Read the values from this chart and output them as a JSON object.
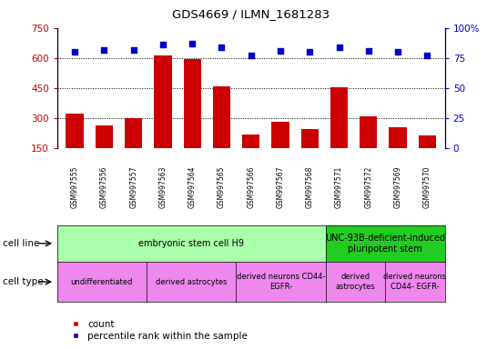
{
  "title": "GDS4669 / ILMN_1681283",
  "samples": [
    "GSM997555",
    "GSM997556",
    "GSM997557",
    "GSM997563",
    "GSM997564",
    "GSM997565",
    "GSM997566",
    "GSM997567",
    "GSM997568",
    "GSM997571",
    "GSM997572",
    "GSM997569",
    "GSM997570"
  ],
  "counts": [
    325,
    265,
    300,
    615,
    595,
    460,
    220,
    280,
    245,
    455,
    310,
    255,
    215
  ],
  "percentiles": [
    80,
    82,
    82,
    86,
    87,
    84,
    77,
    81,
    80,
    84,
    81,
    80,
    77
  ],
  "ylim_left": [
    150,
    750
  ],
  "ylim_right": [
    0,
    100
  ],
  "yticks_left": [
    150,
    300,
    450,
    600,
    750
  ],
  "yticks_right": [
    0,
    25,
    50,
    75,
    100
  ],
  "hgrid_values": [
    300,
    450,
    600
  ],
  "bar_color": "#cc0000",
  "dot_color": "#0000cc",
  "cell_line_groups": [
    {
      "label": "embryonic stem cell H9",
      "start": 0,
      "end": 9,
      "color": "#aaffaa"
    },
    {
      "label": "UNC-93B-deficient-induced\npluripotent stem",
      "start": 9,
      "end": 13,
      "color": "#22cc22"
    }
  ],
  "cell_type_groups": [
    {
      "label": "undifferentiated",
      "start": 0,
      "end": 3,
      "color": "#ee88ee"
    },
    {
      "label": "derived astrocytes",
      "start": 3,
      "end": 6,
      "color": "#ee88ee"
    },
    {
      "label": "derived neurons CD44-\nEGFR-",
      "start": 6,
      "end": 9,
      "color": "#ee88ee"
    },
    {
      "label": "derived\nastrocytes",
      "start": 9,
      "end": 11,
      "color": "#ee88ee"
    },
    {
      "label": "derived neurons\nCD44- EGFR-",
      "start": 11,
      "end": 13,
      "color": "#ee88ee"
    }
  ],
  "row_labels": [
    "cell line",
    "cell type"
  ],
  "legend_items": [
    {
      "label": "count",
      "color": "#cc0000"
    },
    {
      "label": "percentile rank within the sample",
      "color": "#0000cc"
    }
  ],
  "xticklabel_bg": "#cccccc",
  "right_axis_top_label": "100%",
  "right_axis_labels": [
    "0",
    "25",
    "50",
    "75",
    "100%"
  ]
}
